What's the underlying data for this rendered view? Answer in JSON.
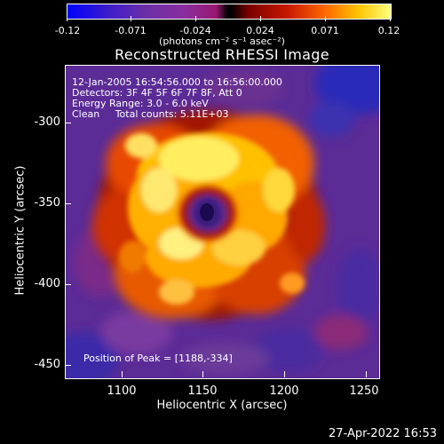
{
  "colorbar": {
    "ticks": [
      "-0.12",
      "-0.071",
      "-0.024",
      "0.024",
      "0.071",
      "0.12"
    ],
    "unit": "(photons cm⁻² s⁻¹ asec⁻²)"
  },
  "title": "Reconstructed RHESSI Image",
  "info": {
    "line1": "12-Jan-2005 16:54:56.000 to 16:56:00.000",
    "line2": "Detectors: 3F 4F 5F 6F 7F 8F, Att 0",
    "line3": "Energy Range: 3.0 - 6.0 keV",
    "line4": "Clean     Total counts: 5.11E+03",
    "peak": "Position of Peak = [1188,-334]"
  },
  "axes": {
    "xlabel": "Heliocentric X (arcsec)",
    "ylabel": "Heliocentric Y (arcsec)",
    "xticks": [
      "1100",
      "1150",
      "1200",
      "1250"
    ],
    "yticks": [
      "-300",
      "-350",
      "-400",
      "-450"
    ]
  },
  "timestamp": "27-Apr-2022 16:53"
}
